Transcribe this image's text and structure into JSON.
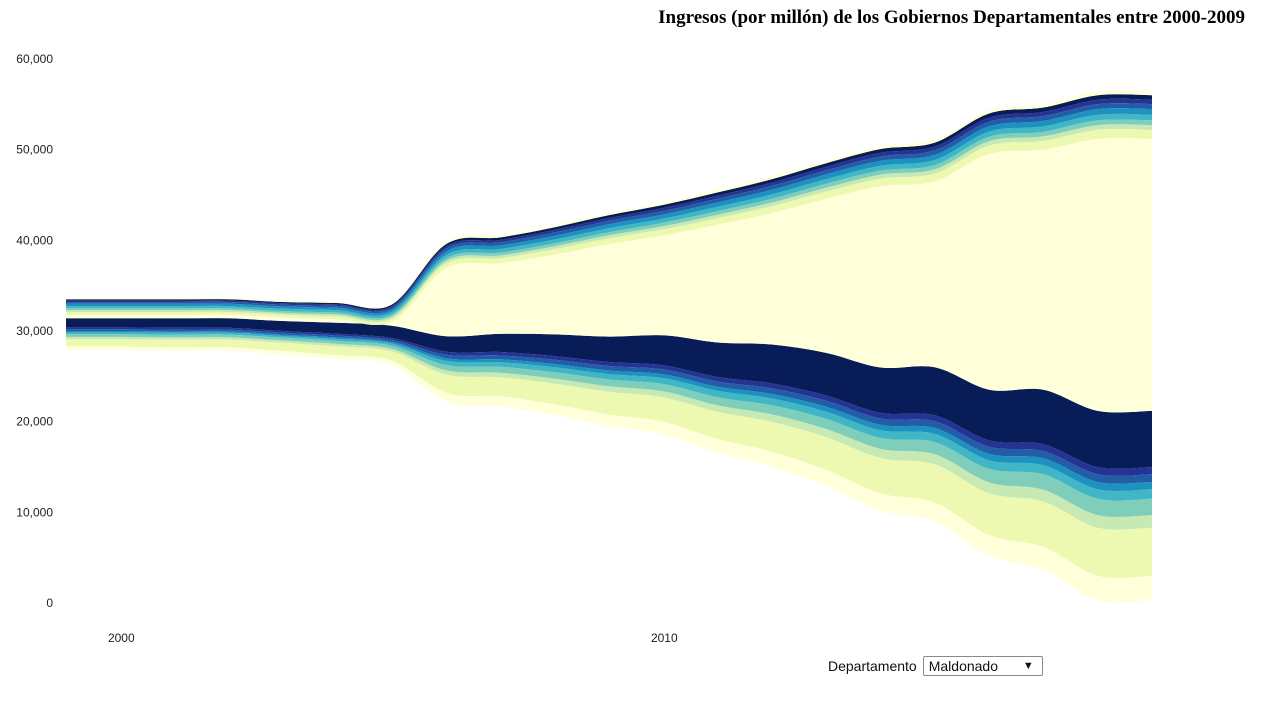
{
  "title": "Ingresos (por millón) de los Gobiernos Departamentales entre 2000-2009",
  "controls": {
    "label": "Departamento",
    "selected": "Maldonado",
    "arrow_icon": "caret-down-icon"
  },
  "chart_data": {
    "type": "area",
    "stacked": true,
    "offset": "streamgraph",
    "x": [
      1999,
      2000,
      2001,
      2002,
      2003,
      2004,
      2005,
      2006,
      2007,
      2008,
      2009,
      2010,
      2011,
      2012,
      2013,
      2014,
      2015,
      2016,
      2017,
      2018,
      2019
    ],
    "x_ticks": [
      2000,
      2010
    ],
    "x_tick_labels": [
      "2000",
      "2010"
    ],
    "y_ticks": [
      0,
      10000,
      20000,
      30000,
      40000,
      50000,
      60000
    ],
    "y_tick_labels": [
      "0",
      "10,000",
      "20,000",
      "30,000",
      "40,000",
      "50,000",
      "60,000"
    ],
    "ylim": [
      0,
      60000
    ],
    "baseline": [
      27900,
      27900,
      27800,
      27800,
      27400,
      26900,
      26300,
      22200,
      21700,
      20700,
      19500,
      18600,
      16600,
      15000,
      12900,
      10200,
      9000,
      5200,
      3700,
      300,
      300
    ],
    "series": [
      {
        "color": "#ffffd9",
        "values": [
          400,
          400,
          400,
          400,
          400,
          450,
          450,
          1000,
          1100,
          1200,
          1300,
          1400,
          1500,
          1700,
          1800,
          1900,
          2100,
          2300,
          2500,
          2700,
          2700
        ]
      },
      {
        "color": "#edf8b1",
        "values": [
          800,
          800,
          850,
          850,
          900,
          950,
          1000,
          2000,
          2100,
          2300,
          2500,
          2700,
          3000,
          3300,
          3600,
          3900,
          4200,
          4600,
          5000,
          5300,
          5300
        ]
      },
      {
        "color": "#c7e9b4",
        "values": [
          250,
          250,
          250,
          250,
          250,
          280,
          280,
          450,
          500,
          550,
          600,
          650,
          700,
          800,
          900,
          1000,
          1100,
          1200,
          1300,
          1400,
          1400
        ]
      },
      {
        "color": "#7fcdbb",
        "values": [
          300,
          300,
          300,
          300,
          300,
          320,
          350,
          600,
          650,
          700,
          750,
          800,
          900,
          1000,
          1100,
          1200,
          1350,
          1500,
          1700,
          1800,
          1800
        ]
      },
      {
        "color": "#41b6c4",
        "values": [
          200,
          200,
          200,
          200,
          200,
          220,
          240,
          450,
          500,
          550,
          600,
          650,
          700,
          750,
          800,
          850,
          900,
          950,
          1000,
          1050,
          1050
        ]
      },
      {
        "color": "#1d91c0",
        "values": [
          150,
          150,
          150,
          150,
          150,
          160,
          170,
          300,
          330,
          360,
          390,
          420,
          450,
          500,
          550,
          600,
          650,
          700,
          750,
          800,
          800
        ]
      },
      {
        "color": "#225ea8",
        "values": [
          200,
          200,
          200,
          200,
          200,
          210,
          220,
          380,
          420,
          460,
          500,
          540,
          580,
          620,
          660,
          700,
          740,
          780,
          820,
          860,
          860
        ]
      },
      {
        "color": "#253494",
        "values": [
          200,
          200,
          200,
          200,
          200,
          210,
          220,
          350,
          380,
          410,
          440,
          470,
          500,
          540,
          580,
          620,
          660,
          700,
          740,
          780,
          780
        ]
      },
      {
        "color": "#081d58",
        "values": [
          1000,
          1000,
          1050,
          1050,
          1100,
          1200,
          1350,
          1700,
          2000,
          2400,
          2800,
          3300,
          3800,
          4300,
          4700,
          5000,
          5300,
          5600,
          6000,
          6200,
          6200
        ]
      },
      {
        "color": "#ffffd9",
        "values": [
          400,
          400,
          400,
          400,
          400,
          400,
          450,
          7500,
          7800,
          8800,
          10200,
          11000,
          13000,
          14500,
          17000,
          20000,
          20500,
          26000,
          26500,
          30000,
          30000
        ]
      },
      {
        "color": "#edf8b1",
        "values": [
          300,
          300,
          300,
          300,
          300,
          320,
          340,
          520,
          560,
          600,
          640,
          680,
          720,
          760,
          800,
          840,
          880,
          920,
          960,
          1000,
          1000
        ]
      },
      {
        "color": "#c7e9b4",
        "values": [
          200,
          200,
          200,
          200,
          200,
          210,
          220,
          280,
          300,
          320,
          340,
          360,
          380,
          400,
          420,
          440,
          460,
          480,
          500,
          520,
          520
        ]
      },
      {
        "color": "#7fcdbb",
        "values": [
          200,
          200,
          200,
          200,
          200,
          210,
          220,
          290,
          310,
          330,
          350,
          370,
          390,
          410,
          430,
          450,
          470,
          490,
          510,
          530,
          530
        ]
      },
      {
        "color": "#41b6c4",
        "values": [
          250,
          250,
          250,
          250,
          250,
          260,
          270,
          370,
          390,
          410,
          430,
          450,
          470,
          490,
          510,
          530,
          550,
          570,
          590,
          610,
          610
        ]
      },
      {
        "color": "#1d91c0",
        "values": [
          250,
          250,
          250,
          250,
          250,
          260,
          270,
          380,
          400,
          420,
          440,
          460,
          480,
          500,
          520,
          540,
          560,
          580,
          600,
          620,
          620
        ]
      },
      {
        "color": "#225ea8",
        "values": [
          200,
          200,
          200,
          200,
          200,
          210,
          220,
          320,
          340,
          360,
          380,
          400,
          420,
          440,
          460,
          480,
          500,
          520,
          540,
          560,
          560
        ]
      },
      {
        "color": "#253494",
        "values": [
          150,
          150,
          150,
          150,
          150,
          160,
          170,
          240,
          260,
          280,
          300,
          320,
          340,
          360,
          380,
          400,
          420,
          440,
          460,
          480,
          480
        ]
      },
      {
        "color": "#081d58",
        "values": [
          150,
          150,
          150,
          150,
          150,
          160,
          170,
          260,
          280,
          300,
          320,
          340,
          360,
          380,
          400,
          420,
          440,
          460,
          480,
          500,
          500
        ]
      },
      {
        "color": "#ffffd9",
        "values": [
          150,
          150,
          150,
          150,
          150,
          150,
          150,
          250,
          250,
          250,
          250,
          250,
          300,
          300,
          300,
          300,
          350,
          350,
          350,
          400,
          400
        ]
      }
    ]
  }
}
